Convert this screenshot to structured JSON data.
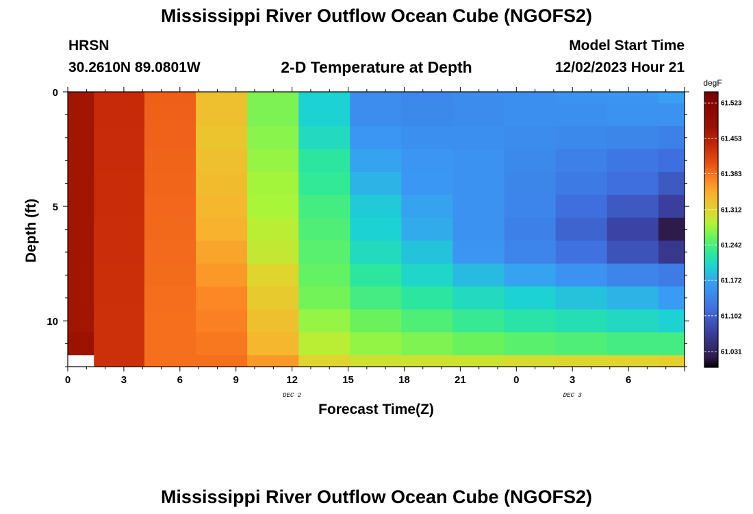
{
  "page": {
    "title": "Mississippi River Outflow Ocean Cube (NGOFS2)",
    "title_bottom": "Mississippi River Outflow Ocean Cube (NGOFS2)",
    "station_name": "HRSN",
    "station_coords": "30.2610N  89.0801W",
    "plot_subtitle": "2-D Temperature at Depth",
    "model_label": "Model Start Time",
    "model_time": "12/02/2023 Hour 21"
  },
  "chart_data": {
    "type": "heatmap",
    "title": "2-D Temperature at Depth",
    "xlabel": "Forecast Time(Z)",
    "ylabel": "Depth (ft)",
    "x_tick_labels": [
      "0",
      "3",
      "6",
      "9",
      "12",
      "15",
      "18",
      "21",
      "0",
      "3",
      "6"
    ],
    "x_range_hours": [
      0,
      33
    ],
    "date_labels": [
      {
        "text": "DEC 2",
        "hour": 12
      },
      {
        "text": "DEC 3",
        "hour": 27
      }
    ],
    "y_tick_labels": [
      "0",
      "5",
      "10"
    ],
    "y_range_ft": [
      0,
      12
    ],
    "column_edges_hours": [
      0,
      1.4,
      4.1,
      6.85,
      9.6,
      12.35,
      15.1,
      17.85,
      20.6,
      23.35,
      26.1,
      28.85,
      31.6,
      33
    ],
    "row_edges_ft": [
      0,
      0.5,
      1.5,
      2.5,
      3.5,
      4.5,
      5.5,
      6.5,
      7.5,
      8.5,
      9.5,
      10.5,
      11.5,
      12
    ],
    "values_degF": [
      [
        61.47,
        61.438,
        61.395,
        61.33,
        61.265,
        61.2,
        61.15,
        61.143,
        61.148,
        61.152,
        61.155,
        61.16,
        61.168
      ],
      [
        61.47,
        61.438,
        61.394,
        61.33,
        61.265,
        61.2,
        61.15,
        61.145,
        61.148,
        61.152,
        61.153,
        61.155,
        61.155
      ],
      [
        61.47,
        61.437,
        61.393,
        61.325,
        61.27,
        61.21,
        61.16,
        61.152,
        61.152,
        61.148,
        61.145,
        61.142,
        61.135
      ],
      [
        61.47,
        61.437,
        61.392,
        61.33,
        61.275,
        61.225,
        61.17,
        61.16,
        61.155,
        61.145,
        61.135,
        61.125,
        61.115
      ],
      [
        61.47,
        61.436,
        61.391,
        61.333,
        61.28,
        61.23,
        61.18,
        61.162,
        61.155,
        61.142,
        61.128,
        61.115,
        61.095
      ],
      [
        61.47,
        61.436,
        61.39,
        61.338,
        61.282,
        61.24,
        61.195,
        61.17,
        61.155,
        61.14,
        61.115,
        61.095,
        61.07
      ],
      [
        61.47,
        61.435,
        61.389,
        61.342,
        61.29,
        61.245,
        61.2,
        61.175,
        61.155,
        61.135,
        61.105,
        61.075,
        61.02
      ],
      [
        61.47,
        61.435,
        61.388,
        61.352,
        61.295,
        61.25,
        61.21,
        61.19,
        61.16,
        61.14,
        61.12,
        61.09,
        61.06
      ],
      [
        61.47,
        61.434,
        61.387,
        61.36,
        61.31,
        61.255,
        61.225,
        61.205,
        61.185,
        61.17,
        61.155,
        61.14,
        61.13
      ],
      [
        61.47,
        61.434,
        61.386,
        61.37,
        61.32,
        61.262,
        61.24,
        61.225,
        61.21,
        61.2,
        61.19,
        61.18,
        61.165
      ],
      [
        61.47,
        61.433,
        61.385,
        61.375,
        61.33,
        61.275,
        61.258,
        61.245,
        61.232,
        61.222,
        61.215,
        61.208,
        61.2
      ],
      [
        61.475,
        61.433,
        61.385,
        61.38,
        61.338,
        61.29,
        61.274,
        61.266,
        61.258,
        61.25,
        61.245,
        61.24,
        61.24
      ],
      [
        null,
        61.433,
        61.385,
        61.385,
        61.36,
        61.31,
        61.3,
        61.3,
        61.3,
        61.305,
        61.308,
        61.31,
        61.315
      ]
    ],
    "colorbar": {
      "unit": "degF",
      "min": 61.0,
      "max": 61.545,
      "tick_labels": [
        "61.523",
        "61.453",
        "61.383",
        "61.312",
        "61.242",
        "61.172",
        "61.102",
        "61.031"
      ],
      "colors": [
        "#000000",
        "#2e1b4b",
        "#3a3f9e",
        "#3f6ede",
        "#3a9bf5",
        "#1dd2d2",
        "#2ee89a",
        "#62f262",
        "#b0f535",
        "#e0d42f",
        "#f9b02d",
        "#fb8023",
        "#e84e12",
        "#c42808",
        "#9c1200",
        "#7a0000"
      ],
      "color_stops": [
        61.0,
        61.02,
        61.07,
        61.115,
        61.165,
        61.2,
        61.228,
        61.255,
        61.285,
        61.31,
        61.345,
        61.375,
        61.405,
        61.44,
        61.475,
        61.545
      ]
    }
  }
}
